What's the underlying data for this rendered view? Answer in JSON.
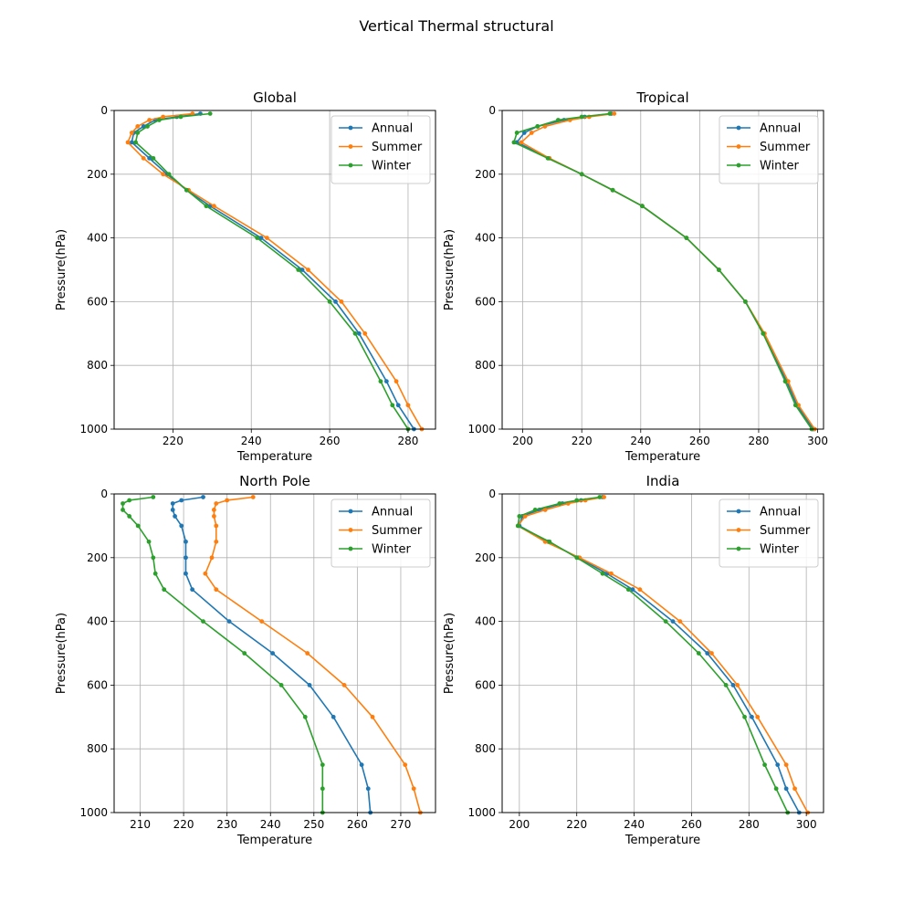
{
  "figure": {
    "title": "Vertical Thermal structural"
  },
  "colors": {
    "Annual": "#1f77b4",
    "Summer": "#ff7f0e",
    "Winter": "#2ca02c",
    "grid": "#b0b0b0"
  },
  "chart_data": [
    {
      "type": "line",
      "title": "Global",
      "xlabel": "Temperature",
      "ylabel": "Pressure(hPa)",
      "xlim": [
        205,
        287
      ],
      "ylim": [
        1000,
        0
      ],
      "xticks": [
        220,
        240,
        260,
        280
      ],
      "yticks": [
        0,
        200,
        400,
        600,
        800,
        1000
      ],
      "grid": true,
      "legend": "top-right",
      "pressure": [
        1000,
        925,
        850,
        700,
        600,
        500,
        400,
        300,
        250,
        200,
        150,
        100,
        70,
        50,
        30,
        20,
        10
      ],
      "series": [
        {
          "name": "Annual",
          "values": [
            281.5,
            277.5,
            274.5,
            267.5,
            261.5,
            253,
            242.5,
            229.5,
            223.5,
            218.5,
            214,
            209.5,
            210,
            212.5,
            215.5,
            221,
            227
          ]
        },
        {
          "name": "Summer",
          "values": [
            283.5,
            280,
            277,
            269,
            263,
            254.5,
            244,
            230.5,
            224,
            217.5,
            212.5,
            208.5,
            209.5,
            211,
            214,
            217.5,
            225
          ]
        },
        {
          "name": "Winter",
          "values": [
            280,
            276,
            273,
            266.5,
            260,
            252,
            241.5,
            228.5,
            223.5,
            219,
            215,
            210.5,
            211,
            213.5,
            216.5,
            222,
            229.5
          ]
        }
      ]
    },
    {
      "type": "line",
      "title": "Tropical",
      "xlabel": "Temperature",
      "ylabel": "Pressure(hPa)",
      "xlim": [
        193,
        302
      ],
      "ylim": [
        1000,
        0
      ],
      "xticks": [
        200,
        220,
        240,
        260,
        280,
        300
      ],
      "yticks": [
        0,
        200,
        400,
        600,
        800,
        1000
      ],
      "grid": true,
      "legend": "top-right",
      "pressure": [
        1000,
        925,
        850,
        700,
        600,
        500,
        400,
        300,
        250,
        200,
        150,
        100,
        70,
        50,
        30,
        20,
        10
      ],
      "series": [
        {
          "name": "Annual",
          "values": [
            298.5,
            293,
            289.5,
            281.5,
            275.5,
            266.5,
            255.5,
            240.5,
            230.5,
            220,
            209,
            198,
            200.5,
            205,
            214,
            221,
            230
          ]
        },
        {
          "name": "Summer",
          "values": [
            299,
            293.5,
            290,
            282,
            275.5,
            266.5,
            255.5,
            240.5,
            230.5,
            220,
            209,
            199.5,
            203,
            207.5,
            216,
            222.5,
            231
          ]
        },
        {
          "name": "Winter",
          "values": [
            298,
            292.5,
            289,
            281.5,
            275.5,
            266.5,
            255.5,
            240.5,
            230.5,
            220,
            208.5,
            197,
            198,
            205,
            212,
            220,
            229.5
          ]
        }
      ]
    },
    {
      "type": "line",
      "title": "North Pole",
      "xlabel": "Temperature",
      "ylabel": "Pressure(hPa)",
      "xlim": [
        204,
        278
      ],
      "ylim": [
        1000,
        0
      ],
      "xticks": [
        210,
        220,
        230,
        240,
        250,
        260,
        270
      ],
      "yticks": [
        0,
        200,
        400,
        600,
        800,
        1000
      ],
      "grid": true,
      "legend": "top-right",
      "pressure": [
        1000,
        925,
        850,
        700,
        600,
        500,
        400,
        300,
        250,
        200,
        150,
        100,
        70,
        50,
        30,
        20,
        10
      ],
      "series": [
        {
          "name": "Annual",
          "values": [
            263,
            262.5,
            261,
            254.5,
            249,
            240.5,
            230.5,
            222,
            220.5,
            220.5,
            220.5,
            219.5,
            218,
            217.5,
            217.5,
            219.5,
            224.5
          ]
        },
        {
          "name": "Summer",
          "values": [
            274.5,
            273,
            271,
            263.5,
            257,
            248.5,
            238,
            227.5,
            225,
            226.5,
            227.5,
            227.5,
            227,
            227,
            227.5,
            230,
            236
          ]
        },
        {
          "name": "Winter",
          "values": [
            252,
            252,
            252,
            248,
            242.5,
            234,
            224.5,
            215.5,
            213.5,
            213,
            212,
            209.5,
            207.5,
            206,
            206,
            207.5,
            213
          ]
        }
      ]
    },
    {
      "type": "line",
      "title": "India",
      "xlabel": "Temperature",
      "ylabel": "Pressure(hPa)",
      "xlim": [
        194,
        306
      ],
      "ylim": [
        1000,
        0
      ],
      "xticks": [
        200,
        220,
        240,
        260,
        280,
        300
      ],
      "yticks": [
        0,
        200,
        400,
        600,
        800,
        1000
      ],
      "grid": true,
      "legend": "top-right",
      "pressure": [
        1000,
        925,
        850,
        700,
        600,
        500,
        400,
        300,
        250,
        200,
        150,
        100,
        70,
        50,
        30,
        20,
        10
      ],
      "series": [
        {
          "name": "Annual",
          "values": [
            297.5,
            293,
            290,
            281,
            274.5,
            265.5,
            253.5,
            239.5,
            230.5,
            220.5,
            210,
            200,
            201,
            207,
            215,
            221.5,
            229
          ]
        },
        {
          "name": "Summer",
          "values": [
            300.5,
            296,
            293,
            283,
            276,
            267,
            256,
            242,
            232,
            221,
            209,
            199.5,
            202,
            209,
            217,
            223,
            229.5
          ]
        },
        {
          "name": "Winter",
          "values": [
            293.5,
            289.5,
            285.5,
            278.5,
            272,
            262.5,
            251,
            238,
            229,
            220,
            210.5,
            199.5,
            200,
            205.5,
            214,
            220,
            228
          ]
        }
      ]
    }
  ]
}
